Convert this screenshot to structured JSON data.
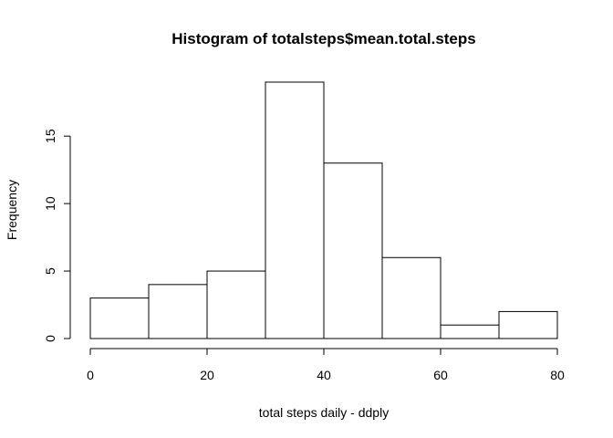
{
  "chart_data": {
    "type": "bar",
    "title": "Histogram of totalsteps$mean.total.steps",
    "xlabel": "total steps daily - ddply",
    "ylabel": "Frequency",
    "bins": [
      {
        "from": 0,
        "to": 10,
        "count": 3
      },
      {
        "from": 10,
        "to": 20,
        "count": 4
      },
      {
        "from": 20,
        "to": 30,
        "count": 5
      },
      {
        "from": 30,
        "to": 40,
        "count": 19
      },
      {
        "from": 40,
        "to": 50,
        "count": 13
      },
      {
        "from": 50,
        "to": 60,
        "count": 6
      },
      {
        "from": 60,
        "to": 70,
        "count": 1
      },
      {
        "from": 70,
        "to": 80,
        "count": 2
      }
    ],
    "xlim": [
      0,
      80
    ],
    "ylim": [
      0,
      19
    ],
    "xticks": [
      "0",
      "20",
      "40",
      "60",
      "80"
    ],
    "yticks": [
      "0",
      "5",
      "10",
      "15"
    ],
    "grid": false,
    "legend": "none"
  }
}
